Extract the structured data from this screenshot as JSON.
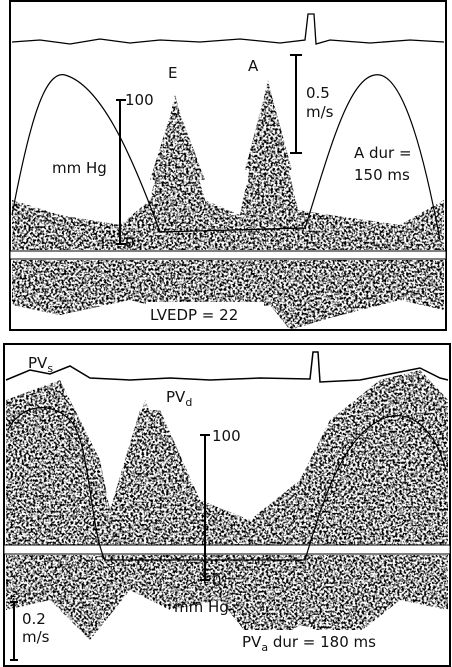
{
  "top_panel": {
    "wave_e": "E",
    "wave_a": "A",
    "velocity_scale": {
      "value": "0.5",
      "unit": "m/s"
    },
    "pressure_scale": {
      "top": "100",
      "bottom": "0",
      "unit": "mm Hg"
    },
    "a_duration": {
      "line1": "A dur =",
      "line2": "150 ms"
    },
    "lvedp": "LVEDP = 22"
  },
  "bottom_panel": {
    "pv_s": {
      "main": "PV",
      "sub": "s"
    },
    "pv_d": {
      "main": "PV",
      "sub": "d"
    },
    "pressure_scale": {
      "top": "100",
      "bottom": "0",
      "unit": "mm Hg"
    },
    "velocity_scale": {
      "value": "0.2",
      "unit": "m/s"
    },
    "pv_a_duration": {
      "main": "PV",
      "sub": "a",
      "rest": " dur = 180 ms"
    }
  }
}
